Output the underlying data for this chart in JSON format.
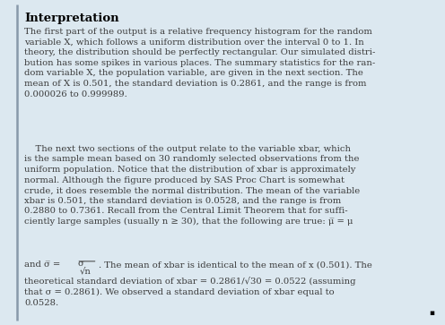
{
  "title": "Interpretation",
  "background_color": "#dce8f0",
  "box_facecolor": "#dce8f0",
  "left_bar_color": "#8899aa",
  "title_fontsize": 9.5,
  "body_fontsize": 7.2,
  "p1": "The first part of the output is a relative frequency histogram for the random\nvariable X, which follows a uniform distribution over the interval 0 to 1. In\ntheory, the distribution should be perfectly rectangular. Our simulated distri-\nbution has some spikes in various places. The summary statistics for the ran-\ndom variable X, the population variable, are given in the next section. The\nmean of X is 0.501, the standard deviation is 0.2861, and the range is from\n0.000026 to 0.999989.",
  "p2": "    The next two sections of the output relate to the variable xbar, which\nis the sample mean based on 30 randomly selected observations from the\nuniform population. Notice that the distribution of xbar is approximately\nnormal. Although the figure produced by SAS Proc Chart is somewhat\ncrude, it does resemble the normal distribution. The mean of the variable\nxbar is 0.501, the standard deviation is 0.0528, and the range is from\n0.2880 to 0.7361. Recall from the Central Limit Theorem that for suffi-\nciently large samples (usually n ≥ 30), that the following are true: μ̅ = μ",
  "p2b": "and σ̅ = ",
  "frac_num": "σ",
  "frac_den": "√n",
  "p2c": ". The mean of xbar is identical to the mean of x (0.501). The",
  "p3": "theoretical standard deviation of xbar = 0.2861/√30 = 0.0522 (assuming\nthat σ = 0.2861). We observed a standard deviation of xbar equal to\n0.0528.",
  "end_marker": "▪"
}
